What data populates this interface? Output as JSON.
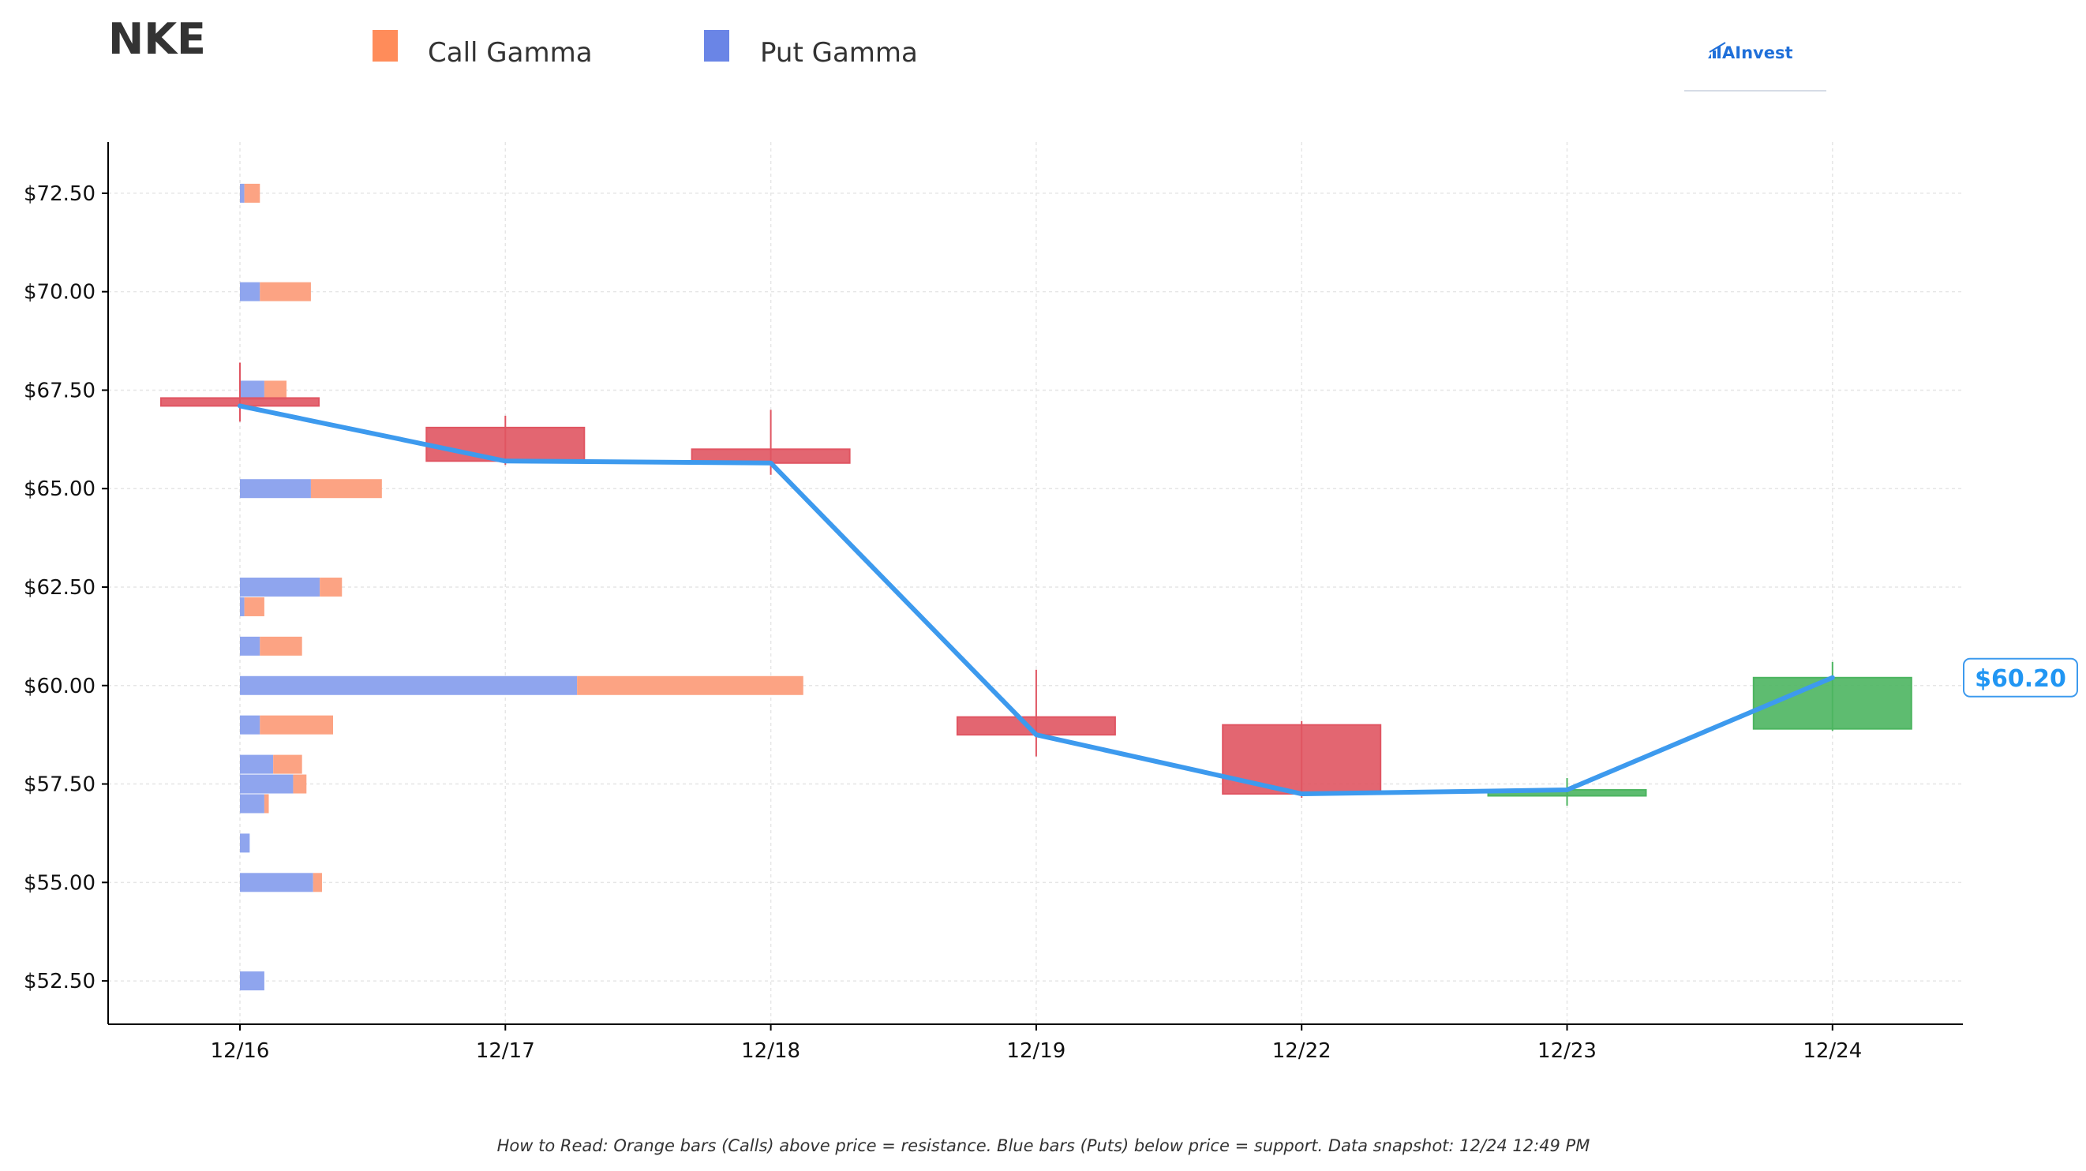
{
  "ticker": "NKE",
  "brand": "AInvest",
  "legend": [
    {
      "label": "Call Gamma",
      "color": "#ff8c5a"
    },
    {
      "label": "Put Gamma",
      "color": "#6a85e6"
    }
  ],
  "footnote": "How to Read: Orange bars (Calls) above price = resistance. Blue bars (Puts) below price = support. Data snapshot: 12/24 12:49 PM",
  "price_label": "$60.20",
  "colors": {
    "call": "#fca383",
    "put": "#8fa5ee",
    "down": "#e05562",
    "up": "#4cb560",
    "price_line": "#3d9aee"
  },
  "chart_data": {
    "type": "candlestick",
    "x_ticks": [
      "12/16",
      "12/17",
      "12/18",
      "12/19",
      "12/22",
      "12/23",
      "12/24"
    ],
    "y_ticks": [
      "$52.50",
      "$55.00",
      "$57.50",
      "$60.00",
      "$62.50",
      "$65.00",
      "$67.50",
      "$70.00",
      "$72.50"
    ],
    "y_tick_values": [
      52.5,
      55,
      57.5,
      60,
      62.5,
      65,
      67.5,
      70,
      72.5
    ],
    "ylim": [
      51.4,
      73.8
    ],
    "grid": true,
    "candles": [
      {
        "date": "12/16",
        "open": 67.3,
        "high": 68.2,
        "low": 66.7,
        "close": 67.1
      },
      {
        "date": "12/17",
        "open": 66.55,
        "high": 66.85,
        "low": 65.6,
        "close": 65.7
      },
      {
        "date": "12/18",
        "open": 66.0,
        "high": 67.0,
        "low": 65.35,
        "close": 65.65
      },
      {
        "date": "12/19",
        "open": 59.2,
        "high": 60.4,
        "low": 58.2,
        "close": 58.75
      },
      {
        "date": "12/22",
        "open": 59.0,
        "high": 59.1,
        "low": 57.15,
        "close": 57.25
      },
      {
        "date": "12/23",
        "open": 57.2,
        "high": 57.65,
        "low": 56.95,
        "close": 57.35
      },
      {
        "date": "12/24",
        "open": 58.9,
        "high": 60.6,
        "low": 58.85,
        "close": 60.2
      }
    ],
    "gamma_exposure": [
      {
        "strike": 72.5,
        "put": 0.1,
        "call": 0.45
      },
      {
        "strike": 70.0,
        "put": 0.45,
        "call": 1.6
      },
      {
        "strike": 67.5,
        "put": 0.55,
        "call": 1.05
      },
      {
        "strike": 65.0,
        "put": 1.6,
        "call": 3.2
      },
      {
        "strike": 62.5,
        "put": 1.8,
        "call": 2.3
      },
      {
        "strike": 62.0,
        "put": 0.1,
        "call": 0.55
      },
      {
        "strike": 61.0,
        "put": 0.45,
        "call": 1.4
      },
      {
        "strike": 60.0,
        "put": 7.6,
        "call": 12.7
      },
      {
        "strike": 59.0,
        "put": 0.45,
        "call": 2.1
      },
      {
        "strike": 58.0,
        "put": 0.75,
        "call": 1.4
      },
      {
        "strike": 57.5,
        "put": 1.2,
        "call": 1.5
      },
      {
        "strike": 57.0,
        "put": 0.55,
        "call": 0.65
      },
      {
        "strike": 56.0,
        "put": 0.22,
        "call": 0.22
      },
      {
        "strike": 55.0,
        "put": 1.65,
        "call": 1.85
      },
      {
        "strike": 52.5,
        "put": 0.55,
        "call": 0.55
      }
    ]
  }
}
